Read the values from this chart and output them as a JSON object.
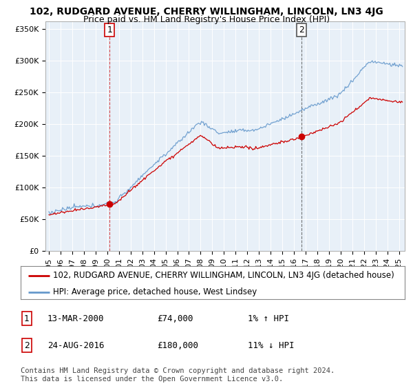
{
  "title": "102, RUDGARD AVENUE, CHERRY WILLINGHAM, LINCOLN, LN3 4JG",
  "subtitle": "Price paid vs. HM Land Registry's House Price Index (HPI)",
  "ylabel_ticks": [
    "£0",
    "£50K",
    "£100K",
    "£150K",
    "£200K",
    "£250K",
    "£300K",
    "£350K"
  ],
  "ytick_vals": [
    0,
    50000,
    100000,
    150000,
    200000,
    250000,
    300000,
    350000
  ],
  "ylim": [
    0,
    362000
  ],
  "xlim_start": 1994.7,
  "xlim_end": 2025.5,
  "sale1_x": 2000.2,
  "sale1_y": 74000,
  "sale1_label": "1",
  "sale2_x": 2016.65,
  "sale2_y": 180000,
  "sale2_label": "2",
  "hpi_color": "#6699CC",
  "property_color": "#CC0000",
  "marker_color": "#CC0000",
  "grid_color": "#CCCCCC",
  "plot_bg_color": "#E8F0F8",
  "background_color": "#FFFFFF",
  "legend_property": "102, RUDGARD AVENUE, CHERRY WILLINGHAM, LINCOLN, LN3 4JG (detached house)",
  "legend_hpi": "HPI: Average price, detached house, West Lindsey",
  "table_rows": [
    {
      "num": "1",
      "date": "13-MAR-2000",
      "price": "£74,000",
      "change": "1% ↑ HPI"
    },
    {
      "num": "2",
      "date": "24-AUG-2016",
      "price": "£180,000",
      "change": "11% ↓ HPI"
    }
  ],
  "footnote": "Contains HM Land Registry data © Crown copyright and database right 2024.\nThis data is licensed under the Open Government Licence v3.0.",
  "title_fontsize": 10,
  "subtitle_fontsize": 9,
  "tick_fontsize": 8,
  "legend_fontsize": 8.5,
  "table_fontsize": 9,
  "footnote_fontsize": 7.5
}
